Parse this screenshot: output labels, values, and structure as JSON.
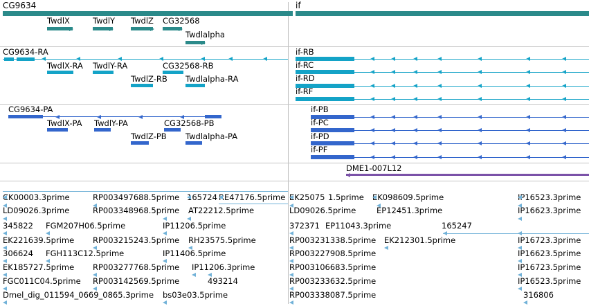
{
  "colors": {
    "gene": "#2b8a8a",
    "transcript_ra": "#14a3c7",
    "transcript_pa": "#3366cc",
    "clone": "#7b52a8",
    "est": "#72b2d8"
  },
  "genes": {
    "cg9634": "CG9634",
    "if": "if",
    "twdlx": "TwdlX",
    "twdly": "TwdlY",
    "twdlz": "TwdlZ",
    "cg32568": "CG32568",
    "twdlalpha": "Twdlalpha"
  },
  "transcripts": {
    "cg9634_ra": "CG9634-RA",
    "twdlx_ra": "TwdlX-RA",
    "twdly_ra": "TwdlY-RA",
    "cg32568_rb": "CG32568-RB",
    "twdlz_rb": "TwdlZ-RB",
    "twdlalpha_ra": "Twdlalpha-RA",
    "if_rb": "if-RB",
    "if_rc": "if-RC",
    "if_rd": "if-RD",
    "if_rf": "if-RF"
  },
  "proteins": {
    "cg9634_pa": "CG9634-PA",
    "twdlx_pa": "TwdlX-PA",
    "twdly_pa": "TwdlY-PA",
    "cg32568_pb": "CG32568-PB",
    "twdlz_pb": "TwdlZ-PB",
    "twdlalpha_pa": "Twdlalpha-PA",
    "if_pb": "if-PB",
    "if_pc": "if-PC",
    "if_pd": "if-PD",
    "if_pf": "if-PF"
  },
  "clones": {
    "dme1": "DME1-007L12"
  },
  "ests": {
    "r1": [
      "CK00003.3prime",
      "RP003497688.5prime",
      "165724",
      "RE47176.5prime",
      "EK25075",
      "1.5prime",
      "EK098609.5prime",
      "IP16523.3prime"
    ],
    "r2": [
      "LD09026.3prime",
      "RP003348968.5prime",
      "AT22212.5prime",
      "LD09026.5prime",
      "EP12451.3prime",
      "IP16623.3prime"
    ],
    "r3": [
      "345822",
      "FGM207H06.5prime",
      "IP11206.5prime",
      "372371",
      "EP11043.3prime",
      "165247"
    ],
    "r4": [
      "EK221639.5prime",
      "RP003215243.5prime",
      "RH23575.5prime",
      "RP003231338.5prime",
      "EK212301.5prime",
      "IP16723.3prime"
    ],
    "r5": [
      "306624",
      "FGH113C12.5prime",
      "IP11406.5prime",
      "RP003227908.5prime",
      "IP16623.5prime"
    ],
    "r6": [
      "EK185727.5prime",
      "RP003277768.5prime",
      "IP11206.3prime",
      "RP003106683.5prime",
      "IP16723.5prime"
    ],
    "r7": [
      "FGC011C04.5prime",
      "RP003142569.5prime",
      "493214",
      "RP003233632.5prime",
      "IP16523.5prime"
    ],
    "r8": [
      "Dmel_dig_011594_0669_0865.3prime",
      "bs03e03.5prime",
      "RP003338087.5prime",
      "316806"
    ]
  }
}
